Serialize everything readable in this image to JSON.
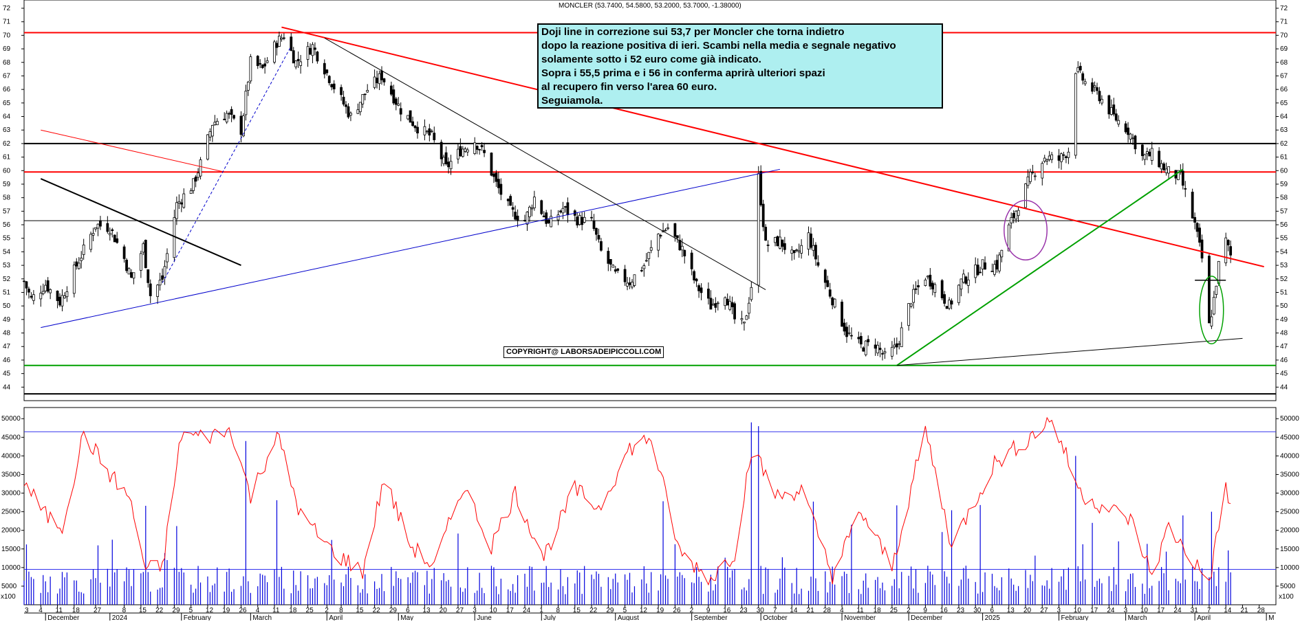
{
  "chart_data": [
    {
      "type": "candlestick",
      "title": "MONCLER (53.7400, 54.5800, 53.2000, 53.7000, -1.38000)",
      "ylim": [
        43,
        72
      ],
      "y_ticks": [
        44,
        45,
        46,
        47,
        48,
        49,
        50,
        51,
        52,
        53,
        54,
        55,
        56,
        57,
        58,
        59,
        60,
        61,
        62,
        63,
        64,
        65,
        66,
        67,
        68,
        69,
        70,
        71,
        72
      ],
      "grid": false,
      "horizontal_levels": [
        {
          "price": 70.2,
          "color": "#ff0000"
        },
        {
          "price": 59.9,
          "color": "#ff0000"
        },
        {
          "price": 62.0,
          "color": "#000000"
        },
        {
          "price": 56.3,
          "color": "#000000"
        },
        {
          "price": 45.6,
          "color": "#00a000"
        },
        {
          "price": 43.5,
          "color": "#000000"
        }
      ],
      "trendlines": [
        {
          "from": [
            "2023-12-04",
            59.4
          ],
          "to": [
            "2024-02-26",
            53.0
          ],
          "color": "#000000",
          "style": "solid",
          "weight": 2
        },
        {
          "from": [
            "2023-12-04",
            63.0
          ],
          "to": [
            "2024-02-19",
            59.9
          ],
          "color": "#ff0000",
          "style": "solid",
          "weight": 1
        },
        {
          "from": [
            "2023-12-04",
            48.4
          ],
          "to": [
            "2024-10-09",
            60.1
          ],
          "color": "#0000cc",
          "style": "solid",
          "weight": 1
        },
        {
          "from": [
            "2024-01-24",
            51.7
          ],
          "to": [
            "2024-03-18",
            69.2
          ],
          "color": "#0000cc",
          "style": "dashed",
          "weight": 1
        },
        {
          "from": [
            "2024-03-14",
            70.6
          ],
          "to": [
            "2025-04-30",
            52.9
          ],
          "color": "#ff0000",
          "style": "solid",
          "weight": 2
        },
        {
          "from": [
            "2024-04-01",
            69.8
          ],
          "to": [
            "2024-10-03",
            51.2
          ],
          "color": "#000000",
          "style": "solid",
          "weight": 1
        },
        {
          "from": [
            "2024-11-27",
            45.6
          ],
          "to": [
            "2025-03-27",
            60.1
          ],
          "color": "#00a000",
          "style": "solid",
          "weight": 2
        },
        {
          "from": [
            "2024-11-27",
            45.6
          ],
          "to": [
            "2025-04-21",
            47.6
          ],
          "color": "#000000",
          "style": "solid",
          "weight": 1
        }
      ],
      "annotations_shapes": [
        {
          "shape": "ellipse",
          "center": [
            "2025-01-20",
            55.6
          ],
          "rx_days": 9,
          "ry": 2.2,
          "color": "#9933aa"
        },
        {
          "shape": "ellipse",
          "center": [
            "2025-04-08",
            49.7
          ],
          "rx_days": 5,
          "ry": 2.5,
          "color": "#00a000"
        },
        {
          "shape": "segment",
          "from": [
            "2025-04-01",
            51.9
          ],
          "to": [
            "2025-04-14",
            51.9
          ],
          "color": "#000000"
        }
      ],
      "comment_lines": [
        "Doji line in correzione sui 53,7 per Moncler che torna indietro",
        "dopo la reazione positiva di ieri. Scambi nella media e segnale negativo",
        "solamente sotto i 52 euro come già indicato.",
        "Sopra i 55,5 prima e i 56 in conferma aprirà ulteriori spazi",
        "al recupero fin verso l'area 60 euro.",
        "Seguiamola."
      ],
      "copyright": "COPYRIGHT@ LABORSADEIPICCOLI.COM",
      "price_anchors": [
        [
          "2023-11-27",
          51.8
        ],
        [
          "2023-11-30",
          50.5
        ],
        [
          "2023-12-06",
          51.6
        ],
        [
          "2023-12-12",
          50.3
        ],
        [
          "2023-12-19",
          53.0
        ],
        [
          "2023-12-27",
          56.0
        ],
        [
          "2024-01-02",
          55.8
        ],
        [
          "2024-01-08",
          53.5
        ],
        [
          "2024-01-11",
          52.0
        ],
        [
          "2024-01-16",
          54.4
        ],
        [
          "2024-01-19",
          50.8
        ],
        [
          "2024-01-24",
          52.0
        ],
        [
          "2024-01-30",
          57.5
        ],
        [
          "2024-02-06",
          59.0
        ],
        [
          "2024-02-09",
          60.5
        ],
        [
          "2024-02-14",
          63.5
        ],
        [
          "2024-02-20",
          64.2
        ],
        [
          "2024-02-26",
          63.0
        ],
        [
          "2024-03-01",
          68.0
        ],
        [
          "2024-03-06",
          67.5
        ],
        [
          "2024-03-12",
          69.5
        ],
        [
          "2024-03-15",
          70.0
        ],
        [
          "2024-03-20",
          68.0
        ],
        [
          "2024-03-27",
          69.2
        ],
        [
          "2024-04-05",
          66.2
        ],
        [
          "2024-04-12",
          64.0
        ],
        [
          "2024-04-19",
          66.0
        ],
        [
          "2024-04-25",
          67.0
        ],
        [
          "2024-05-03",
          64.5
        ],
        [
          "2024-05-10",
          63.2
        ],
        [
          "2024-05-16",
          62.5
        ],
        [
          "2024-05-22",
          60.2
        ],
        [
          "2024-05-28",
          61.5
        ],
        [
          "2024-06-03",
          62.2
        ],
        [
          "2024-06-07",
          61.2
        ],
        [
          "2024-06-12",
          59.0
        ],
        [
          "2024-06-18",
          57.0
        ],
        [
          "2024-06-24",
          56.3
        ],
        [
          "2024-06-28",
          58.0
        ],
        [
          "2024-07-04",
          56.0
        ],
        [
          "2024-07-10",
          57.2
        ],
        [
          "2024-07-16",
          56.4
        ],
        [
          "2024-07-22",
          56.2
        ],
        [
          "2024-07-26",
          54.0
        ],
        [
          "2024-08-01",
          52.3
        ],
        [
          "2024-08-07",
          51.8
        ],
        [
          "2024-08-13",
          53.0
        ],
        [
          "2024-08-19",
          55.3
        ],
        [
          "2024-08-23",
          55.8
        ],
        [
          "2024-08-29",
          54.2
        ],
        [
          "2024-09-04",
          51.5
        ],
        [
          "2024-09-10",
          50.0
        ],
        [
          "2024-09-16",
          51.0
        ],
        [
          "2024-09-20",
          49.0
        ],
        [
          "2024-09-24",
          48.5
        ],
        [
          "2024-09-27",
          51.5
        ],
        [
          "2024-09-30",
          59.5
        ],
        [
          "2024-10-03",
          54.5
        ],
        [
          "2024-10-09",
          54.8
        ],
        [
          "2024-10-15",
          53.5
        ],
        [
          "2024-10-21",
          55.2
        ],
        [
          "2024-10-25",
          53.0
        ],
        [
          "2024-10-31",
          50.5
        ],
        [
          "2024-11-06",
          48.0
        ],
        [
          "2024-11-12",
          47.0
        ],
        [
          "2024-11-18",
          47.2
        ],
        [
          "2024-11-22",
          46.2
        ],
        [
          "2024-11-27",
          47.0
        ],
        [
          "2024-12-03",
          50.5
        ],
        [
          "2024-12-09",
          52.2
        ],
        [
          "2024-12-13",
          51.5
        ],
        [
          "2024-12-19",
          50.0
        ],
        [
          "2024-12-24",
          51.8
        ],
        [
          "2025-01-02",
          53.0
        ],
        [
          "2025-01-08",
          53.0
        ],
        [
          "2025-01-13",
          55.8
        ],
        [
          "2025-01-17",
          57.5
        ],
        [
          "2025-01-22",
          59.5
        ],
        [
          "2025-01-28",
          61.0
        ],
        [
          "2025-02-03",
          60.8
        ],
        [
          "2025-02-07",
          61.5
        ],
        [
          "2025-02-10",
          67.5
        ],
        [
          "2025-02-14",
          66.5
        ],
        [
          "2025-02-20",
          65.5
        ],
        [
          "2025-02-26",
          64.0
        ],
        [
          "2025-03-04",
          63.0
        ],
        [
          "2025-03-10",
          61.0
        ],
        [
          "2025-03-14",
          61.2
        ],
        [
          "2025-03-20",
          60.0
        ],
        [
          "2025-03-26",
          59.5
        ],
        [
          "2025-04-01",
          56.0
        ],
        [
          "2025-04-04",
          53.5
        ],
        [
          "2025-04-07",
          48.5
        ],
        [
          "2025-04-09",
          50.5
        ],
        [
          "2025-04-11",
          53.0
        ],
        [
          "2025-04-14",
          54.8
        ],
        [
          "2025-04-16",
          53.7
        ]
      ]
    },
    {
      "type": "bar_line",
      "title": "Volume",
      "ylim": [
        0,
        53000
      ],
      "y_ticks": [
        5000,
        10000,
        15000,
        20000,
        25000,
        30000,
        35000,
        40000,
        45000,
        50000
      ],
      "scale_label": "x100",
      "reference_levels": [
        9500,
        46500
      ],
      "colors": {
        "volume": "#0000dd",
        "oscillator": "#ff0000"
      },
      "oscillator_anchors": [
        [
          "2023-11-27",
          33000
        ],
        [
          "2023-12-06",
          24000
        ],
        [
          "2023-12-13",
          21000
        ],
        [
          "2023-12-22",
          46000
        ],
        [
          "2024-01-02",
          35000
        ],
        [
          "2024-01-10",
          29000
        ],
        [
          "2024-01-17",
          9500
        ],
        [
          "2024-01-24",
          10000
        ],
        [
          "2024-02-01",
          46000
        ],
        [
          "2024-02-10",
          45000
        ],
        [
          "2024-02-22",
          47000
        ],
        [
          "2024-03-01",
          29000
        ],
        [
          "2024-03-12",
          46000
        ],
        [
          "2024-03-22",
          24000
        ],
        [
          "2024-04-05",
          14000
        ],
        [
          "2024-04-17",
          9000
        ],
        [
          "2024-04-26",
          34000
        ],
        [
          "2024-05-07",
          16000
        ],
        [
          "2024-05-17",
          10000
        ],
        [
          "2024-05-29",
          32000
        ],
        [
          "2024-06-10",
          16000
        ],
        [
          "2024-06-20",
          30000
        ],
        [
          "2024-07-02",
          13000
        ],
        [
          "2024-07-15",
          31000
        ],
        [
          "2024-07-25",
          26000
        ],
        [
          "2024-08-07",
          42000
        ],
        [
          "2024-08-16",
          45000
        ],
        [
          "2024-08-28",
          14000
        ],
        [
          "2024-09-10",
          7000
        ],
        [
          "2024-09-20",
          14000
        ],
        [
          "2024-09-27",
          42000
        ],
        [
          "2024-10-08",
          29000
        ],
        [
          "2024-10-18",
          31000
        ],
        [
          "2024-10-31",
          8000
        ],
        [
          "2024-11-12",
          25000
        ],
        [
          "2024-11-25",
          10000
        ],
        [
          "2024-12-09",
          47000
        ],
        [
          "2024-12-20",
          16000
        ],
        [
          "2025-01-07",
          38000
        ],
        [
          "2025-01-20",
          44000
        ],
        [
          "2025-01-31",
          50000
        ],
        [
          "2025-02-12",
          30000
        ],
        [
          "2025-02-20",
          27000
        ],
        [
          "2025-03-05",
          23000
        ],
        [
          "2025-03-14",
          8000
        ],
        [
          "2025-03-21",
          21000
        ],
        [
          "2025-03-31",
          12000
        ],
        [
          "2025-04-07",
          6000
        ],
        [
          "2025-04-14",
          32000
        ],
        [
          "2025-04-16",
          26000
        ]
      ],
      "volume_spikes": [
        [
          "2024-02-28",
          44000
        ],
        [
          "2024-09-27",
          49000
        ],
        [
          "2024-09-30",
          48000
        ],
        [
          "2025-02-10",
          40000
        ],
        [
          "2025-03-27",
          24000
        ],
        [
          "2025-04-08",
          25000
        ]
      ],
      "volume_baseline": 7000
    }
  ],
  "y_axis_price_labels": [
    "72",
    "71",
    "70",
    "69",
    "68",
    "67",
    "66",
    "65",
    "64",
    "63",
    "62",
    "61",
    "60",
    "59",
    "58",
    "57",
    "56",
    "55",
    "54",
    "53",
    "52",
    "51",
    "50",
    "49",
    "48",
    "47",
    "46",
    "45",
    "44"
  ],
  "y_axis_volume_labels": [
    "50000",
    "45000",
    "40000",
    "35000",
    "30000",
    "25000",
    "20000",
    "15000",
    "10000",
    "5000"
  ],
  "x_axis": {
    "day_ticks": [
      [
        "2023-12-04",
        "4"
      ],
      [
        "2023-12-11",
        "11"
      ],
      [
        "2023-12-18",
        "18"
      ],
      [
        "2023-12-27",
        "27"
      ],
      [
        "2024-01-08",
        "8"
      ],
      [
        "2024-01-15",
        "15"
      ],
      [
        "2024-01-22",
        "22"
      ],
      [
        "2024-01-29",
        "29"
      ],
      [
        "2024-02-05",
        "5"
      ],
      [
        "2024-02-12",
        "12"
      ],
      [
        "2024-02-19",
        "19"
      ],
      [
        "2024-02-26",
        "26"
      ],
      [
        "2024-03-04",
        "4"
      ],
      [
        "2024-03-11",
        "11"
      ],
      [
        "2024-03-18",
        "18"
      ],
      [
        "2024-03-25",
        "25"
      ],
      [
        "2024-04-02",
        "2"
      ],
      [
        "2024-04-08",
        "8"
      ],
      [
        "2024-04-15",
        "15"
      ],
      [
        "2024-04-22",
        "22"
      ],
      [
        "2024-04-29",
        "29"
      ],
      [
        "2024-05-06",
        "6"
      ],
      [
        "2024-05-13",
        "13"
      ],
      [
        "2024-05-20",
        "20"
      ],
      [
        "2024-05-27",
        "27"
      ],
      [
        "2024-06-03",
        "3"
      ],
      [
        "2024-06-10",
        "10"
      ],
      [
        "2024-06-17",
        "17"
      ],
      [
        "2024-06-24",
        "24"
      ],
      [
        "2024-07-01",
        "1"
      ],
      [
        "2024-07-08",
        "8"
      ],
      [
        "2024-07-15",
        "15"
      ],
      [
        "2024-07-22",
        "22"
      ],
      [
        "2024-07-29",
        "29"
      ],
      [
        "2024-08-05",
        "5"
      ],
      [
        "2024-08-12",
        "12"
      ],
      [
        "2024-08-19",
        "19"
      ],
      [
        "2024-08-26",
        "26"
      ],
      [
        "2024-09-02",
        "2"
      ],
      [
        "2024-09-09",
        "9"
      ],
      [
        "2024-09-16",
        "16"
      ],
      [
        "2024-09-23",
        "23"
      ],
      [
        "2024-09-30",
        "30"
      ],
      [
        "2024-10-07",
        "7"
      ],
      [
        "2024-10-14",
        "14"
      ],
      [
        "2024-10-21",
        "21"
      ],
      [
        "2024-10-28",
        "28"
      ],
      [
        "2024-11-04",
        "4"
      ],
      [
        "2024-11-11",
        "11"
      ],
      [
        "2024-11-18",
        "18"
      ],
      [
        "2024-11-25",
        "25"
      ],
      [
        "2024-12-02",
        "2"
      ],
      [
        "2024-12-09",
        "9"
      ],
      [
        "2024-12-16",
        "16"
      ],
      [
        "2024-12-23",
        "23"
      ],
      [
        "2024-12-30",
        "30"
      ],
      [
        "2025-01-06",
        "6"
      ],
      [
        "2025-01-13",
        "13"
      ],
      [
        "2025-01-20",
        "20"
      ],
      [
        "2025-01-27",
        "27"
      ],
      [
        "2025-02-03",
        "3"
      ],
      [
        "2025-02-10",
        "10"
      ],
      [
        "2025-02-17",
        "17"
      ],
      [
        "2025-02-24",
        "24"
      ],
      [
        "2025-03-03",
        "3"
      ],
      [
        "2025-03-10",
        "10"
      ],
      [
        "2025-03-17",
        "17"
      ],
      [
        "2025-03-24",
        "24"
      ],
      [
        "2025-03-31",
        "31"
      ],
      [
        "2025-04-07",
        "7"
      ],
      [
        "2025-04-14",
        "14"
      ],
      [
        "2025-04-21",
        "21"
      ],
      [
        "2025-04-28",
        "28"
      ]
    ],
    "month_labels": [
      [
        "2023-12-06",
        "December"
      ],
      [
        "2024-01-02",
        "2024"
      ],
      [
        "2024-02-01",
        "February"
      ],
      [
        "2024-03-01",
        "March"
      ],
      [
        "2024-04-02",
        "April"
      ],
      [
        "2024-05-02",
        "May"
      ],
      [
        "2024-06-03",
        "June"
      ],
      [
        "2024-07-01",
        "July"
      ],
      [
        "2024-08-01",
        "August"
      ],
      [
        "2024-09-02",
        "September"
      ],
      [
        "2024-10-01",
        "October"
      ],
      [
        "2024-11-04",
        "November"
      ],
      [
        "2024-12-02",
        "December"
      ],
      [
        "2025-01-02",
        "2025"
      ],
      [
        "2025-02-03",
        "February"
      ],
      [
        "2025-03-03",
        "March"
      ],
      [
        "2025-04-01",
        "April"
      ],
      [
        "2025-05-01",
        "M"
      ]
    ]
  }
}
